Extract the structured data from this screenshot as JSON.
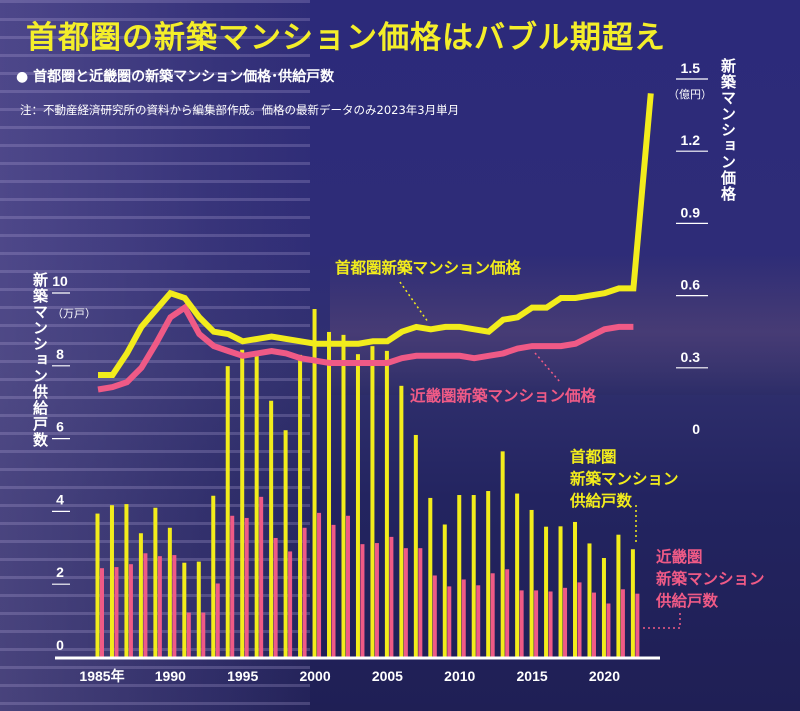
{
  "title": "首都圏の新築マンション価格はバブル期超え",
  "subtitle": "● 首都圏と近畿圏の新築マンション価格･供給戸数",
  "note": "注：不動産経済研究所の資料から編集部作成。価格の最新データのみ2023年3月単月",
  "colors": {
    "tokyo": "#f2ec1c",
    "kinki": "#ef5a86",
    "axis": "#ffffff"
  },
  "chart_data": {
    "type": "bar+line",
    "years": [
      1985,
      1986,
      1987,
      1988,
      1989,
      1990,
      1991,
      1992,
      1993,
      1994,
      1995,
      1996,
      1997,
      1998,
      1999,
      2000,
      2001,
      2002,
      2003,
      2004,
      2005,
      2006,
      2007,
      2008,
      2009,
      2010,
      2011,
      2012,
      2013,
      2014,
      2015,
      2016,
      2017,
      2018,
      2019,
      2020,
      2021,
      2022
    ],
    "x_tick_labels": [
      "1985年",
      "1990",
      "1995",
      "2000",
      "2005",
      "2010",
      "2015",
      "2020"
    ],
    "x_tick_years": [
      1985,
      1990,
      1995,
      2000,
      2005,
      2010,
      2015,
      2020
    ],
    "left_axis": {
      "label": "新築マンション供給戸数",
      "unit": "（万戸）",
      "ylim": [
        0,
        10
      ],
      "ticks": [
        "0",
        "2",
        "4",
        "6",
        "8",
        "10"
      ]
    },
    "right_axis": {
      "label": "新築マンション価格",
      "unit": "（億円）",
      "ylim": [
        0,
        1.5
      ],
      "ticks": [
        "0",
        "0.3",
        "0.6",
        "0.9",
        "1.2",
        "1.5"
      ]
    },
    "bar_series": [
      {
        "name": "首都圏新築マンション供給戸数",
        "label_lines": [
          "首都圏",
          "新築マンション",
          "供給戸数"
        ],
        "values": [
          3.94,
          4.17,
          4.2,
          3.4,
          4.1,
          3.55,
          2.59,
          2.62,
          4.43,
          7.99,
          8.44,
          8.39,
          7.04,
          6.23,
          8.3,
          9.56,
          8.93,
          8.85,
          8.32,
          8.54,
          8.41,
          7.45,
          6.1,
          4.37,
          3.64,
          4.45,
          4.45,
          4.56,
          5.65,
          4.49,
          4.04,
          3.58,
          3.59,
          3.71,
          3.12,
          2.72,
          3.36,
          2.96
        ]
      },
      {
        "name": "近畿圏新築マンション供給戸数",
        "label_lines": [
          "近畿圏",
          "新築マンション",
          "供給戸数"
        ],
        "values": [
          2.44,
          2.47,
          2.55,
          2.85,
          2.77,
          2.8,
          1.22,
          1.22,
          2.02,
          3.88,
          3.82,
          4.4,
          3.27,
          2.9,
          3.55,
          3.96,
          3.63,
          3.88,
          3.1,
          3.13,
          3.3,
          2.99,
          2.99,
          2.24,
          1.94,
          2.13,
          1.97,
          2.3,
          2.41,
          1.83,
          1.83,
          1.8,
          1.9,
          2.05,
          1.77,
          1.47,
          1.86,
          1.74
        ]
      }
    ],
    "line_series": [
      {
        "name": "首都圏新築マンション価格",
        "x": [
          1985,
          1986,
          1987,
          1988,
          1989,
          1990,
          1991,
          1992,
          1993,
          1994,
          1995,
          1996,
          1997,
          1998,
          1999,
          2000,
          2001,
          2002,
          2003,
          2004,
          2005,
          2006,
          2007,
          2008,
          2009,
          2010,
          2011,
          2012,
          2013,
          2014,
          2015,
          2016,
          2017,
          2018,
          2019,
          2020,
          2021,
          2022,
          2023.2
        ],
        "values": [
          0.27,
          0.27,
          0.36,
          0.47,
          0.54,
          0.61,
          0.59,
          0.51,
          0.45,
          0.44,
          0.41,
          0.42,
          0.43,
          0.42,
          0.41,
          0.4,
          0.4,
          0.4,
          0.4,
          0.41,
          0.41,
          0.45,
          0.47,
          0.46,
          0.47,
          0.47,
          0.46,
          0.45,
          0.5,
          0.51,
          0.55,
          0.55,
          0.59,
          0.59,
          0.6,
          0.61,
          0.63,
          0.63,
          1.44
        ]
      },
      {
        "name": "近畿圏新築マンション価格",
        "x": [
          1985,
          1986,
          1987,
          1988,
          1989,
          1990,
          1991,
          1992,
          1993,
          1994,
          1995,
          1996,
          1997,
          1998,
          1999,
          2000,
          2001,
          2002,
          2003,
          2004,
          2005,
          2006,
          2007,
          2008,
          2009,
          2010,
          2011,
          2012,
          2013,
          2014,
          2015,
          2016,
          2017,
          2018,
          2019,
          2020,
          2021,
          2022
        ],
        "values": [
          0.21,
          0.22,
          0.24,
          0.3,
          0.4,
          0.51,
          0.55,
          0.44,
          0.39,
          0.37,
          0.35,
          0.36,
          0.37,
          0.36,
          0.34,
          0.33,
          0.32,
          0.32,
          0.32,
          0.32,
          0.32,
          0.34,
          0.35,
          0.35,
          0.35,
          0.35,
          0.34,
          0.35,
          0.36,
          0.38,
          0.39,
          0.39,
          0.39,
          0.4,
          0.43,
          0.46,
          0.47,
          0.47
        ]
      }
    ],
    "grid": false
  }
}
